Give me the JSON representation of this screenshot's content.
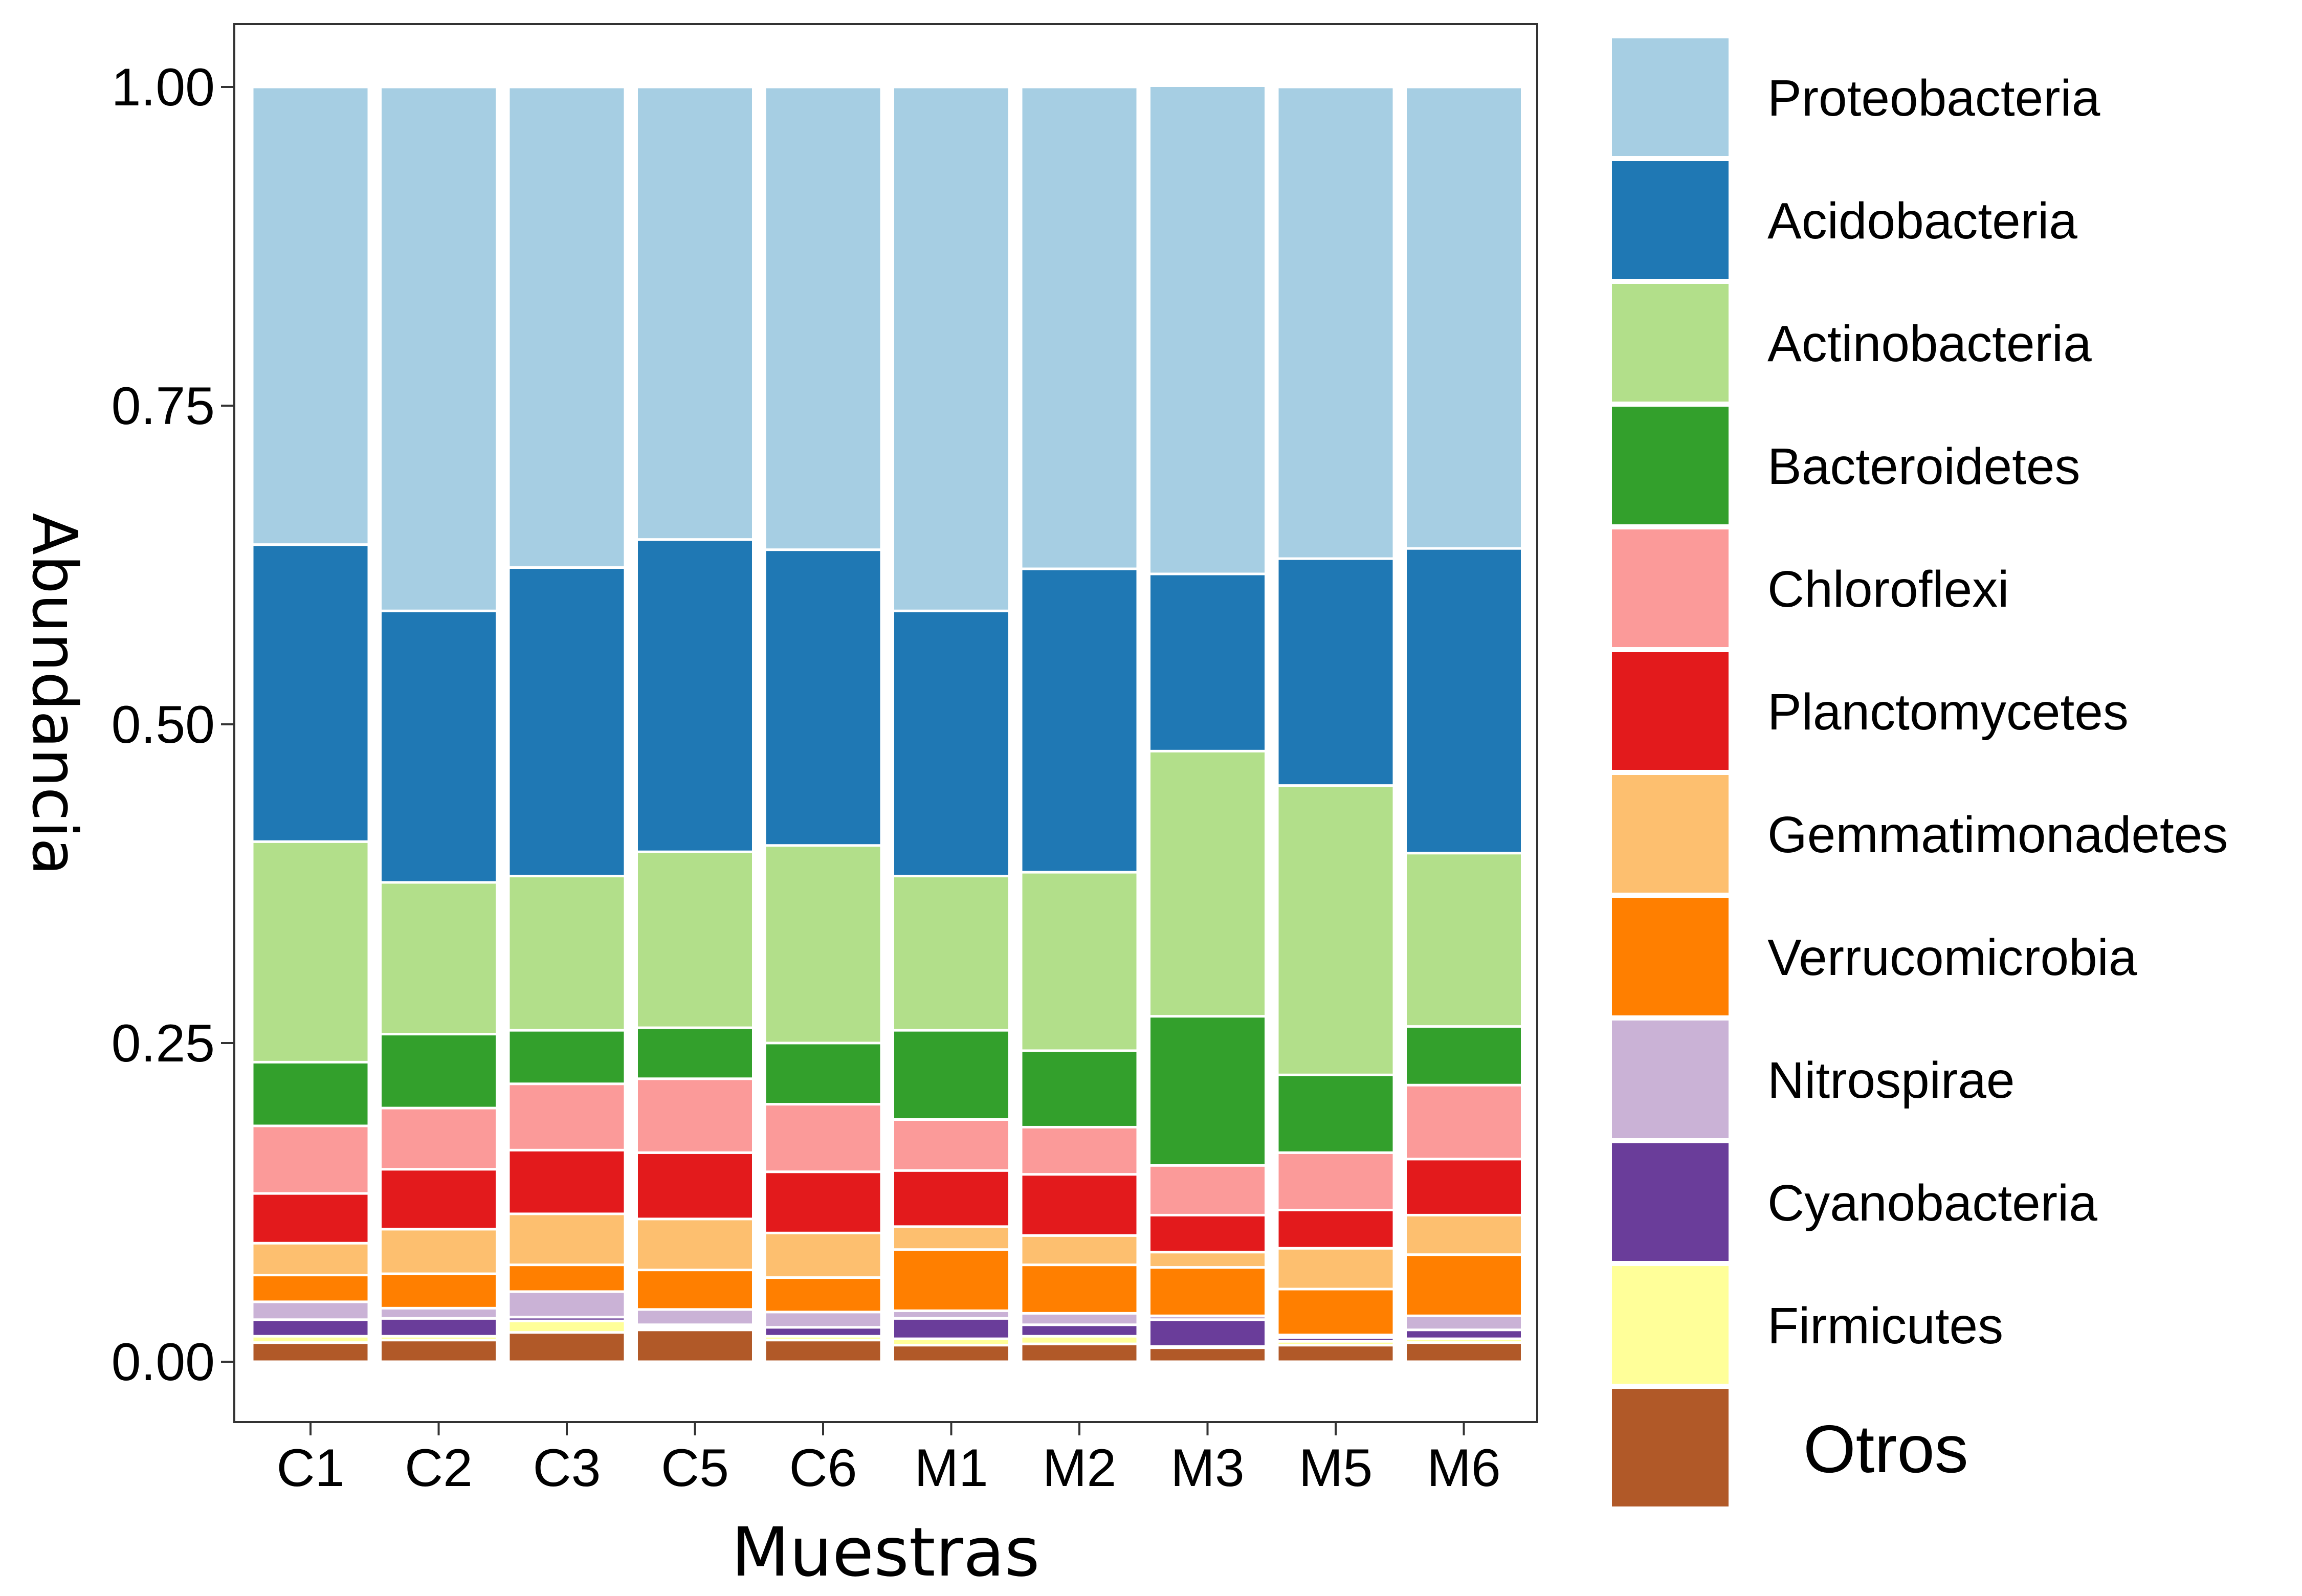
{
  "chart_data": {
    "type": "bar",
    "stacked": true,
    "xlabel": "Muestras",
    "ylabel": "Abundancia",
    "ylim": [
      0,
      1
    ],
    "yticks": [
      "0.00",
      "0.25",
      "0.50",
      "0.75",
      "1.00"
    ],
    "grid": false,
    "legend_position": "right",
    "categories": [
      "C1",
      "C2",
      "C3",
      "C5",
      "C6",
      "M1",
      "M2",
      "M3",
      "M5",
      "M6"
    ],
    "series": [
      {
        "name": "Otros",
        "color": "#b15928",
        "values": [
          0.015,
          0.017,
          0.023,
          0.025,
          0.017,
          0.013,
          0.014,
          0.011,
          0.013,
          0.015
        ]
      },
      {
        "name": "Firmicutes",
        "color": "#ffff99",
        "values": [
          0.005,
          0.003,
          0.009,
          0.002,
          0.003,
          0.005,
          0.006,
          0.001,
          0.003,
          0.003
        ]
      },
      {
        "name": "Cyanobacteria",
        "color": "#6a3d9a",
        "values": [
          0.013,
          0.014,
          0.003,
          0.002,
          0.007,
          0.016,
          0.009,
          0.021,
          0.003,
          0.007
        ]
      },
      {
        "name": "Nitrospirae",
        "color": "#cab2d6",
        "values": [
          0.014,
          0.008,
          0.02,
          0.012,
          0.012,
          0.006,
          0.009,
          0.003,
          0.002,
          0.011
        ]
      },
      {
        "name": "Verrucomicrobia",
        "color": "#ff7f00",
        "values": [
          0.021,
          0.027,
          0.021,
          0.031,
          0.027,
          0.048,
          0.038,
          0.038,
          0.036,
          0.048
        ]
      },
      {
        "name": "Gemmatimonadetes",
        "color": "#fdbf6f",
        "values": [
          0.025,
          0.035,
          0.04,
          0.04,
          0.035,
          0.018,
          0.023,
          0.012,
          0.032,
          0.031
        ]
      },
      {
        "name": "Planctomycetes",
        "color": "#e31a1c",
        "values": [
          0.039,
          0.047,
          0.05,
          0.052,
          0.048,
          0.044,
          0.048,
          0.029,
          0.03,
          0.044
        ]
      },
      {
        "name": "Chloroflexi",
        "color": "#fb9a99",
        "values": [
          0.053,
          0.048,
          0.052,
          0.058,
          0.053,
          0.04,
          0.037,
          0.039,
          0.045,
          0.058
        ]
      },
      {
        "name": "Bacteroidetes",
        "color": "#33a02c",
        "values": [
          0.05,
          0.058,
          0.042,
          0.04,
          0.048,
          0.07,
          0.06,
          0.117,
          0.061,
          0.046
        ]
      },
      {
        "name": "Actinobacteria",
        "color": "#b2df8a",
        "values": [
          0.173,
          0.119,
          0.121,
          0.138,
          0.155,
          0.121,
          0.14,
          0.208,
          0.227,
          0.136
        ]
      },
      {
        "name": "Acidobacteria",
        "color": "#1f78b4",
        "values": [
          0.233,
          0.213,
          0.242,
          0.245,
          0.232,
          0.208,
          0.238,
          0.139,
          0.178,
          0.239
        ]
      },
      {
        "name": "Proteobacteria",
        "color": "#a6cee3",
        "values": [
          0.359,
          0.411,
          0.377,
          0.355,
          0.363,
          0.411,
          0.378,
          0.383,
          0.37,
          0.362
        ]
      }
    ],
    "legend_order": [
      "Proteobacteria",
      "Acidobacteria",
      "Actinobacteria",
      "Bacteroidetes",
      "Chloroflexi",
      "Planctomycetes",
      "Gemmatimonadetes",
      "Verrucomicrobia",
      "Nitrospirae",
      "Cyanobacteria",
      "Firmicutes",
      "Otros"
    ]
  }
}
